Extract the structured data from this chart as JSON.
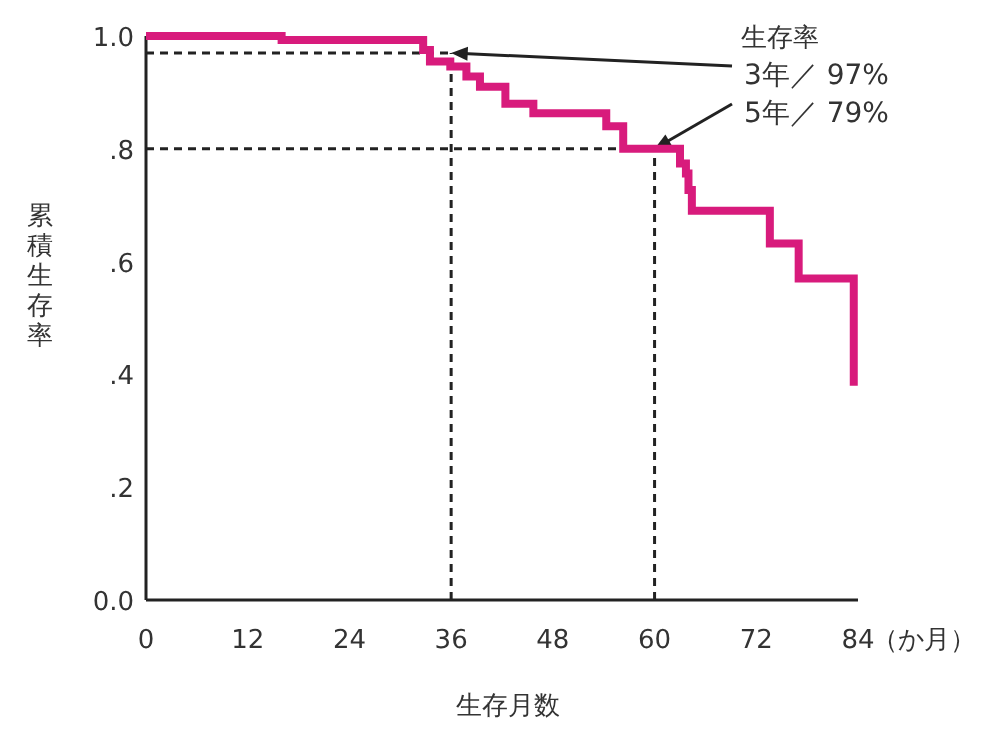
{
  "chart_data": {
    "type": "step",
    "xlabel": "生存月数",
    "ylabel": "累積生存率",
    "x": [
      0,
      16,
      32.7,
      33.5,
      35.9,
      37.8,
      39.4,
      42.4,
      45.7,
      54.3,
      56.3,
      63,
      63.7,
      64,
      64.4,
      73.6,
      77,
      83.5
    ],
    "series": [
      {
        "color": "#d81b7c",
        "values": [
          1.0,
          0.993,
          0.975,
          0.955,
          0.946,
          0.928,
          0.91,
          0.88,
          0.863,
          0.84,
          0.8,
          0.774,
          0.756,
          0.727,
          0.69,
          0.632,
          0.57,
          0.38
        ]
      }
    ],
    "xlim": [
      0,
      84
    ],
    "ylim": [
      0,
      1
    ],
    "xticks": [
      0,
      12,
      24,
      36,
      48,
      60,
      72,
      84
    ],
    "yticks": [
      {
        "value": 0,
        "label": "0.0"
      },
      {
        "value": 0.2,
        "label": ".2"
      },
      {
        "value": 0.4,
        "label": ".4"
      },
      {
        "value": 0.6,
        "label": ".6"
      },
      {
        "value": 0.8,
        "label": ".8"
      },
      {
        "value": 1,
        "label": "1.0"
      }
    ],
    "ref_lines": [
      {
        "axis": "y",
        "value": 0.97
      },
      {
        "axis": "x",
        "value": 36
      },
      {
        "axis": "y",
        "value": 0.8
      },
      {
        "axis": "x",
        "value": 60
      }
    ],
    "annotations": [
      "（か月）",
      "生存率",
      {
        "text": "3年／ 97%",
        "x": 36,
        "y": 0.97
      },
      {
        "text": "5年／ 79%",
        "x": 60,
        "y": 0.8
      }
    ]
  }
}
